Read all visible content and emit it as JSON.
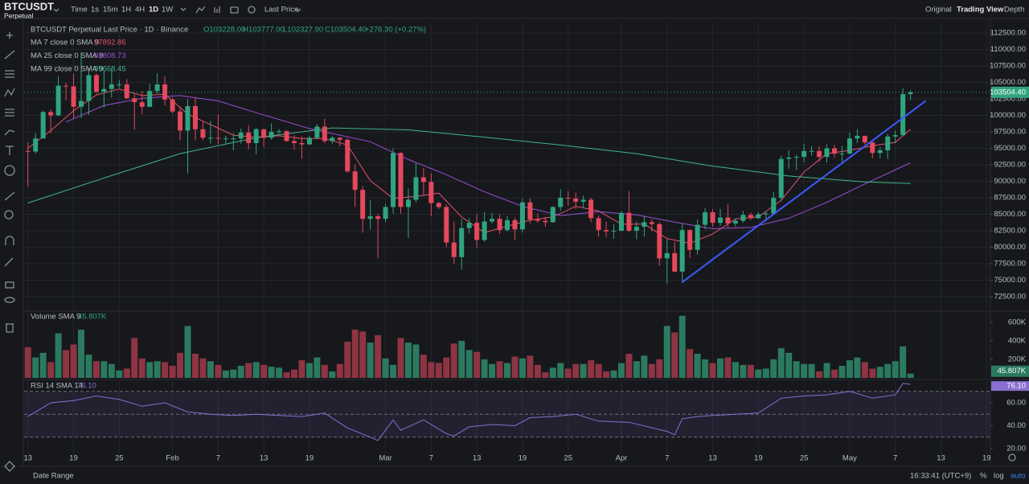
{
  "toolbar": {
    "symbol": "BTCUSDT",
    "contract": "Perpetual",
    "intervals": [
      "Time",
      "1s",
      "15m",
      "1H",
      "4H",
      "1D",
      "1W"
    ],
    "price_type": "Last Price",
    "views": [
      "Original",
      "Trading View",
      "Depth"
    ]
  },
  "chart_data": [
    {
      "type": "candlestick",
      "title": "BTCUSDT Perpetual Last Price · 1D · Binance",
      "ohlc_labels": [
        "O103228.00",
        "H103777.00",
        "L102327.90",
        "C103504.40"
      ],
      "change": "+276.30 (+0.27%)",
      "up_color": "#2fa57f",
      "down_color": "#e5485d",
      "open": [
        94600,
        94500,
        96500,
        100500,
        100000,
        104500,
        104400,
        101300,
        102200,
        106100,
        103600,
        104000,
        104700,
        104700,
        102600,
        102000,
        101300,
        103700,
        104700,
        102400,
        100600,
        97700,
        101400,
        97900,
        96600,
        96600,
        96500,
        96500,
        96500,
        97400,
        95800,
        97900,
        96600,
        97500,
        97600,
        96100,
        95800,
        95600,
        96600,
        98300,
        96100,
        96600,
        96300,
        91500,
        88700,
        84300,
        84700,
        84300,
        86100,
        94300,
        86100,
        87200,
        90600,
        89900,
        86700,
        86100,
        80700,
        78500,
        82900,
        83700,
        81100,
        83900,
        84300,
        82600,
        84100,
        82700,
        86800,
        84200,
        84000,
        83800,
        86100,
        87500,
        87400,
        86900,
        87200,
        84400,
        82600,
        82400,
        82500,
        85200,
        82500,
        83100,
        83800,
        83500,
        78300,
        79100,
        76300,
        82600,
        79600,
        83400,
        85300,
        83700,
        84500,
        83600,
        84000,
        84900,
        84400,
        85000,
        85100,
        87500,
        93400,
        93600,
        93700,
        94600,
        94600,
        93700,
        95000,
        94200,
        94200,
        96500,
        96900,
        95900,
        94300,
        94700,
        96800,
        97000,
        103228
      ],
      "high": [
        95900,
        97300,
        100700,
        100900,
        105900,
        104900,
        106300,
        109600,
        107200,
        106400,
        106800,
        107100,
        105400,
        105500,
        103200,
        103700,
        104800,
        106400,
        105900,
        102700,
        101400,
        102500,
        102800,
        99000,
        99200,
        100100,
        96900,
        97300,
        98000,
        98500,
        98100,
        97900,
        98800,
        97900,
        97700,
        97000,
        96800,
        96900,
        98700,
        99500,
        96900,
        96700,
        96500,
        92500,
        89300,
        87100,
        85100,
        86600,
        95000,
        94400,
        88900,
        92800,
        92000,
        91200,
        86900,
        86500,
        83900,
        84300,
        84400,
        85000,
        85300,
        85200,
        85000,
        84700,
        84500,
        87400,
        87400,
        85100,
        84600,
        86200,
        88800,
        88500,
        88300,
        87800,
        87500,
        84800,
        83900,
        83500,
        85500,
        88500,
        83900,
        84700,
        84200,
        83800,
        81200,
        80800,
        83600,
        82700,
        84200,
        85900,
        85800,
        85800,
        86500,
        84400,
        85500,
        85300,
        85300,
        85500,
        88400,
        93900,
        94700,
        94000,
        95700,
        95300,
        95300,
        95600,
        95500,
        95400,
        97400,
        97900,
        96900,
        96000,
        95200,
        97200,
        97700,
        104100,
        103777
      ],
      "low": [
        89200,
        94200,
        96500,
        97300,
        99900,
        102300,
        99500,
        99600,
        100100,
        103300,
        101200,
        102700,
        104200,
        102500,
        97800,
        100200,
        101300,
        103300,
        101500,
        100300,
        96200,
        91200,
        96200,
        96200,
        95700,
        95600,
        95700,
        94700,
        95700,
        94900,
        94100,
        95200,
        96300,
        97200,
        96000,
        94800,
        93400,
        95500,
        96400,
        95800,
        95700,
        95300,
        91300,
        86100,
        82200,
        82700,
        78300,
        83800,
        85100,
        85100,
        81400,
        86800,
        87800,
        84700,
        85800,
        80000,
        77500,
        76600,
        82100,
        79900,
        80800,
        83600,
        82000,
        82400,
        81100,
        82200,
        83600,
        83700,
        83100,
        83700,
        85500,
        86300,
        85800,
        85900,
        83800,
        81600,
        81500,
        81300,
        82400,
        82300,
        81200,
        81600,
        82400,
        77200,
        74500,
        76200,
        74600,
        78400,
        78900,
        82700,
        83100,
        83200,
        83000,
        83100,
        83700,
        84100,
        84300,
        83900,
        85100,
        87000,
        91900,
        91700,
        92900,
        93900,
        93000,
        92800,
        93600,
        92900,
        94100,
        95800,
        95600,
        93500,
        93500,
        93400,
        95800,
        96900,
        102327.9
      ],
      "close": [
        94500,
        96500,
        100500,
        100000,
        104500,
        104400,
        101300,
        102200,
        106100,
        103600,
        104000,
        104700,
        104700,
        102600,
        102000,
        101300,
        103700,
        104700,
        102400,
        100600,
        97700,
        101400,
        97900,
        96600,
        96600,
        96500,
        96500,
        96500,
        97400,
        95800,
        97900,
        96600,
        97500,
        97600,
        96100,
        95800,
        95600,
        96600,
        98300,
        96100,
        96600,
        96300,
        91500,
        88700,
        84300,
        84700,
        84300,
        86100,
        94300,
        86100,
        87200,
        90600,
        89900,
        86700,
        86100,
        80700,
        78500,
        82900,
        83700,
        81100,
        83900,
        84300,
        82600,
        84100,
        82700,
        86800,
        84200,
        84000,
        83800,
        86100,
        87500,
        87400,
        86900,
        87200,
        84400,
        82600,
        82400,
        82500,
        85200,
        82500,
        83100,
        83800,
        83500,
        78300,
        79100,
        76300,
        82600,
        79600,
        83400,
        85300,
        83700,
        84500,
        83600,
        84000,
        84900,
        84400,
        85000,
        85100,
        87500,
        93400,
        93600,
        93700,
        94600,
        94600,
        93700,
        95000,
        94200,
        94200,
        96500,
        96900,
        95900,
        94300,
        94700,
        96800,
        97000,
        103228,
        103504.4
      ],
      "last_price_label": "103504.40",
      "xlim": [
        -0.5,
        126.5
      ],
      "xticks": [
        {
          "value": 0,
          "label": "13"
        },
        {
          "value": 6,
          "label": "19"
        },
        {
          "value": 12,
          "label": "25"
        },
        {
          "value": 19,
          "label": "Feb"
        },
        {
          "value": 25,
          "label": "7"
        },
        {
          "value": 31,
          "label": "13"
        },
        {
          "value": 37,
          "label": "19"
        },
        {
          "value": 47,
          "label": "Mar"
        },
        {
          "value": 53,
          "label": "7"
        },
        {
          "value": 59,
          "label": "13"
        },
        {
          "value": 65,
          "label": "19"
        },
        {
          "value": 71,
          "label": "25"
        },
        {
          "value": 78,
          "label": "Apr"
        },
        {
          "value": 84,
          "label": "7"
        },
        {
          "value": 90,
          "label": "13"
        },
        {
          "value": 96,
          "label": "19"
        },
        {
          "value": 102,
          "label": "25"
        },
        {
          "value": 108,
          "label": "May"
        },
        {
          "value": 114,
          "label": "7"
        },
        {
          "value": 120,
          "label": "13"
        },
        {
          "value": 126,
          "label": "19"
        }
      ],
      "ylim": [
        70420,
        114090
      ],
      "yticks": [
        {
          "value": 72500,
          "label": "72500.00"
        },
        {
          "value": 75000,
          "label": "75000.00"
        },
        {
          "value": 77500,
          "label": "77500.00"
        },
        {
          "value": 80000,
          "label": "80000.00"
        },
        {
          "value": 82500,
          "label": "82500.00"
        },
        {
          "value": 85000,
          "label": "85000.00"
        },
        {
          "value": 87500,
          "label": "87500.00"
        },
        {
          "value": 90000,
          "label": "90000.00"
        },
        {
          "value": 92500,
          "label": "92500.00"
        },
        {
          "value": 95000,
          "label": "95000.00"
        },
        {
          "value": 97500,
          "label": "97500.00"
        },
        {
          "value": 100000,
          "label": "100000.00"
        },
        {
          "value": 102500,
          "label": "102500.00"
        },
        {
          "value": 105000,
          "label": "105000.00"
        },
        {
          "value": 107500,
          "label": "107500.00"
        },
        {
          "value": 110000,
          "label": "110000.00"
        },
        {
          "value": 112500,
          "label": "112500.00"
        }
      ],
      "grid": true,
      "ma": [
        {
          "name": "MA 7 close 0 SMA 9",
          "color": "#e5536b",
          "last": 97892.86,
          "x": [
            0,
            3,
            6,
            9,
            12,
            15,
            18,
            21,
            24,
            27,
            30,
            33,
            36,
            39,
            42,
            45,
            48,
            51,
            54,
            57,
            60,
            63,
            66,
            69,
            72,
            75,
            78,
            81,
            84,
            87,
            90,
            93,
            96,
            99,
            102,
            105,
            108,
            111,
            114,
            116
          ],
          "values": [
            95000,
            97700,
            100700,
            103100,
            104000,
            103000,
            103200,
            100200,
            98600,
            97000,
            96700,
            96900,
            96500,
            96500,
            95500,
            90100,
            87400,
            87700,
            88200,
            84600,
            82200,
            83200,
            84100,
            84600,
            86200,
            85500,
            83500,
            83500,
            81300,
            80600,
            82000,
            84300,
            84600,
            87100,
            91400,
            94200,
            94700,
            95400,
            95900,
            97892.86
          ]
        },
        {
          "name": "MA 25 close 0 SMA 9",
          "color": "#9b4fd6",
          "last": 92808.73,
          "x": [
            5,
            10,
            15,
            20,
            25,
            30,
            37,
            45,
            50,
            55,
            60,
            65,
            70,
            75,
            80,
            85,
            90,
            95,
            100,
            105,
            110,
            116
          ],
          "values": [
            99000,
            101500,
            102600,
            103000,
            102200,
            100400,
            98000,
            96000,
            93300,
            91000,
            88400,
            86200,
            84800,
            85400,
            84900,
            83800,
            82800,
            83000,
            84400,
            86800,
            89600,
            92808.73
          ]
        },
        {
          "name": "MA 99 close 0 SMA 9",
          "color": "#3fb68b",
          "last": 89668.45,
          "x": [
            0,
            10,
            20,
            30,
            40,
            50,
            60,
            70,
            80,
            90,
            100,
            110,
            116
          ],
          "values": [
            86700,
            90500,
            94200,
            96600,
            98100,
            97800,
            96700,
            95500,
            94200,
            92300,
            90800,
            89900,
            89668.45
          ]
        }
      ],
      "trendline": {
        "color": "#3d5afe",
        "x": [
          86,
          118
        ],
        "values": [
          74700,
          102200
        ]
      }
    },
    {
      "type": "bar",
      "title": "Volume SMA 9",
      "last_label": "45.807K",
      "up_color": "#2b7a60",
      "down_color": "#8e3443",
      "values": [
        330,
        220,
        270,
        170,
        480,
        300,
        360,
        520,
        250,
        180,
        180,
        150,
        80,
        100,
        430,
        210,
        170,
        180,
        170,
        130,
        270,
        560,
        260,
        210,
        180,
        140,
        80,
        90,
        130,
        160,
        170,
        140,
        120,
        110,
        60,
        90,
        190,
        160,
        220,
        140,
        70,
        150,
        390,
        520,
        500,
        380,
        460,
        210,
        140,
        430,
        380,
        360,
        250,
        170,
        160,
        220,
        370,
        400,
        300,
        280,
        200,
        150,
        180,
        160,
        230,
        210,
        240,
        140,
        60,
        110,
        160,
        100,
        150,
        150,
        190,
        150,
        70,
        80,
        160,
        260,
        180,
        240,
        150,
        200,
        560,
        490,
        670,
        310,
        260,
        200,
        160,
        210,
        220,
        170,
        140,
        140,
        90,
        100,
        200,
        320,
        270,
        180,
        150,
        150,
        70,
        160,
        90,
        130,
        190,
        220,
        170,
        100,
        120,
        150,
        180,
        340,
        45.807
      ],
      "ylim": [
        0,
        711
      ],
      "yticks": [
        {
          "value": 200,
          "label": "200K"
        },
        {
          "value": 400,
          "label": "400K"
        },
        {
          "value": 600,
          "label": "600K"
        }
      ]
    },
    {
      "type": "line",
      "title": "RSI 14 SMA 14",
      "last_label": "76.10",
      "color": "#8a6fd1",
      "x": [
        0,
        3,
        6,
        9,
        12,
        15,
        18,
        21,
        24,
        27,
        30,
        33,
        36,
        39,
        42,
        45,
        46,
        48,
        49,
        52,
        55,
        56,
        58,
        61,
        64,
        66,
        69,
        72,
        75,
        79,
        84,
        85,
        86,
        88,
        90,
        93,
        96,
        99,
        102,
        105,
        108,
        111,
        114,
        115,
        116
      ],
      "values": [
        48,
        60,
        62,
        66,
        63,
        57,
        60,
        52,
        50,
        49,
        50,
        49,
        48,
        51,
        38,
        30,
        27,
        45,
        36,
        45,
        33,
        31,
        39,
        41,
        40,
        47,
        48,
        50,
        44,
        43,
        35,
        32,
        46,
        48,
        49,
        50,
        51,
        64,
        66,
        67,
        70,
        64,
        67,
        77,
        76.1
      ],
      "ylim": [
        15,
        79
      ],
      "yticks": [
        {
          "value": 20,
          "label": "20.00"
        },
        {
          "value": 40,
          "label": "40.00"
        },
        {
          "value": 60,
          "label": "60.00"
        }
      ],
      "bands": [
        30,
        50,
        70
      ]
    }
  ],
  "footer": {
    "date_range": "Date Range",
    "clock": "16:33:41 (UTC+9)",
    "options": [
      "%",
      "log",
      "auto"
    ]
  }
}
